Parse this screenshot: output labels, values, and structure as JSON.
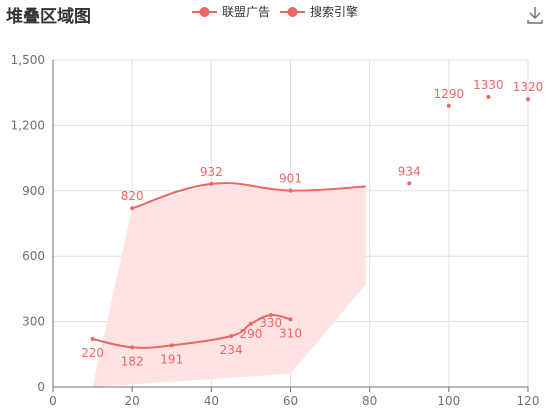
{
  "chart_data": {
    "type": "area",
    "title": "堆叠区域图",
    "xlim": [
      0,
      120
    ],
    "ylim": [
      0,
      1500
    ],
    "x_ticks": [
      0,
      20,
      40,
      60,
      80,
      100,
      120
    ],
    "y_ticks": [
      0,
      300,
      600,
      900,
      1200,
      1500
    ],
    "y_tick_labels": [
      "0",
      "300",
      "600",
      "900",
      "1,200",
      "1,500"
    ],
    "grid": true,
    "legend_position": "top-center",
    "colors": {
      "series": "#ee6666",
      "area": "#fde3e1",
      "grid": "#e0e0e0",
      "axis": "#6e7079"
    },
    "series": [
      {
        "name": "联盟广告",
        "points": [
          {
            "x": 10,
            "y": 220,
            "label": "220"
          },
          {
            "x": 20,
            "y": 182,
            "label": "182"
          },
          {
            "x": 30,
            "y": 191,
            "label": "191"
          },
          {
            "x": 45,
            "y": 234,
            "label": "234"
          },
          {
            "x": 50,
            "y": 290,
            "label": "290"
          },
          {
            "x": 55,
            "y": 330,
            "label": "330"
          },
          {
            "x": 60,
            "y": 310,
            "label": "310"
          }
        ]
      },
      {
        "name": "搜索引擎",
        "points": [
          {
            "x": 20,
            "y": 820,
            "label": "820"
          },
          {
            "x": 40,
            "y": 932,
            "label": "932"
          },
          {
            "x": 60,
            "y": 901,
            "label": "901"
          },
          {
            "x": 79,
            "y": 920
          }
        ],
        "scatter": [
          {
            "x": 90,
            "y": 934,
            "label": "934"
          },
          {
            "x": 100,
            "y": 1290,
            "label": "1290"
          },
          {
            "x": 110,
            "y": 1330,
            "label": "1330"
          },
          {
            "x": 120,
            "y": 1320,
            "label": "1320"
          }
        ]
      }
    ],
    "area_polygon": [
      {
        "x": 10,
        "y": 0
      },
      {
        "x": 20,
        "y": 820
      },
      {
        "x": 40,
        "y": 932
      },
      {
        "x": 60,
        "y": 901
      },
      {
        "x": 79,
        "y": 920
      },
      {
        "x": 79,
        "y": 470
      },
      {
        "x": 60,
        "y": 60
      }
    ]
  }
}
